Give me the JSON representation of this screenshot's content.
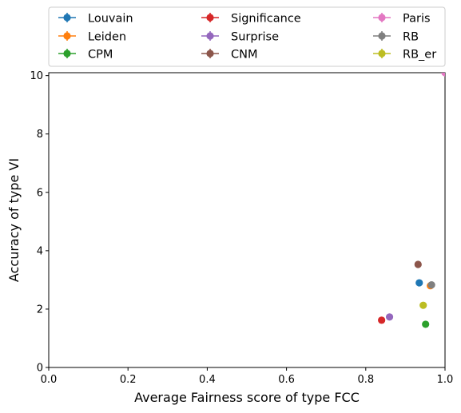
{
  "chart_data": {
    "type": "scatter",
    "xlabel": "Average Fairness score of type FCC",
    "ylabel": "Accuracy of type VI",
    "xlim": [
      0,
      1
    ],
    "ylim": [
      0,
      10.1
    ],
    "x_ticks": [
      "0.0",
      "0.2",
      "0.4",
      "0.6",
      "0.8",
      "1.0"
    ],
    "y_ticks": [
      "0",
      "2",
      "4",
      "6",
      "8",
      "10"
    ],
    "x_tick_values": [
      0,
      0.2,
      0.4,
      0.6,
      0.8,
      1.0
    ],
    "y_tick_values": [
      0,
      2,
      4,
      6,
      8,
      10
    ],
    "grid": false,
    "legend_position": "top",
    "series": [
      {
        "name": "Louvain",
        "color": "#1f77b4",
        "points": [
          [
            0.935,
            2.9
          ]
        ]
      },
      {
        "name": "Leiden",
        "color": "#ff7f0e",
        "points": [
          [
            0.963,
            2.8
          ]
        ]
      },
      {
        "name": "CPM",
        "color": "#2ca02c",
        "points": [
          [
            0.951,
            1.48
          ]
        ]
      },
      {
        "name": "Significance",
        "color": "#d62728",
        "points": [
          [
            0.84,
            1.62
          ]
        ]
      },
      {
        "name": "Surprise",
        "color": "#9467bd",
        "points": [
          [
            0.86,
            1.73
          ]
        ]
      },
      {
        "name": "CNM",
        "color": "#8c564b",
        "points": [
          [
            0.932,
            3.53
          ]
        ]
      },
      {
        "name": "Paris",
        "color": "#e377c2",
        "points": [
          [
            1.0,
            10.1
          ]
        ]
      },
      {
        "name": "RB",
        "color": "#7f7f7f",
        "points": [
          [
            0.966,
            2.83
          ]
        ]
      },
      {
        "name": "RB_er",
        "color": "#bcbd22",
        "points": [
          [
            0.945,
            2.13
          ]
        ]
      }
    ]
  }
}
